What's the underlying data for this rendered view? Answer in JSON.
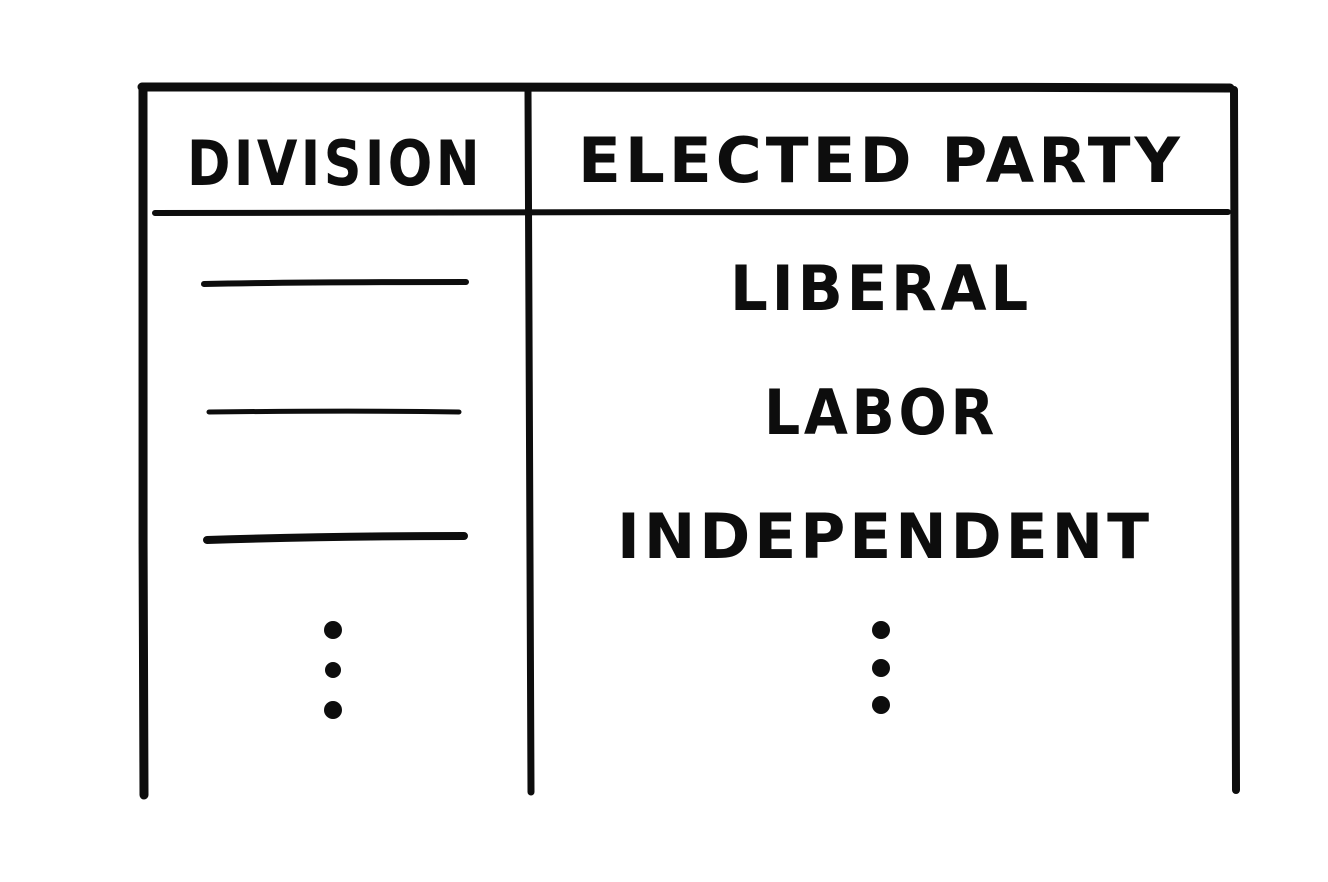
{
  "table": {
    "headers": [
      "DIVISION",
      "ELECTED PARTY"
    ],
    "rows": [
      {
        "division": "",
        "party": "LIBERAL"
      },
      {
        "division": "",
        "party": "LABOR"
      },
      {
        "division": "",
        "party": "INDEPENDENT"
      }
    ],
    "continuation_marker": "ellipsis-dots"
  },
  "colors": {
    "ink": "#0d0d0d",
    "background": "#ffffff"
  }
}
